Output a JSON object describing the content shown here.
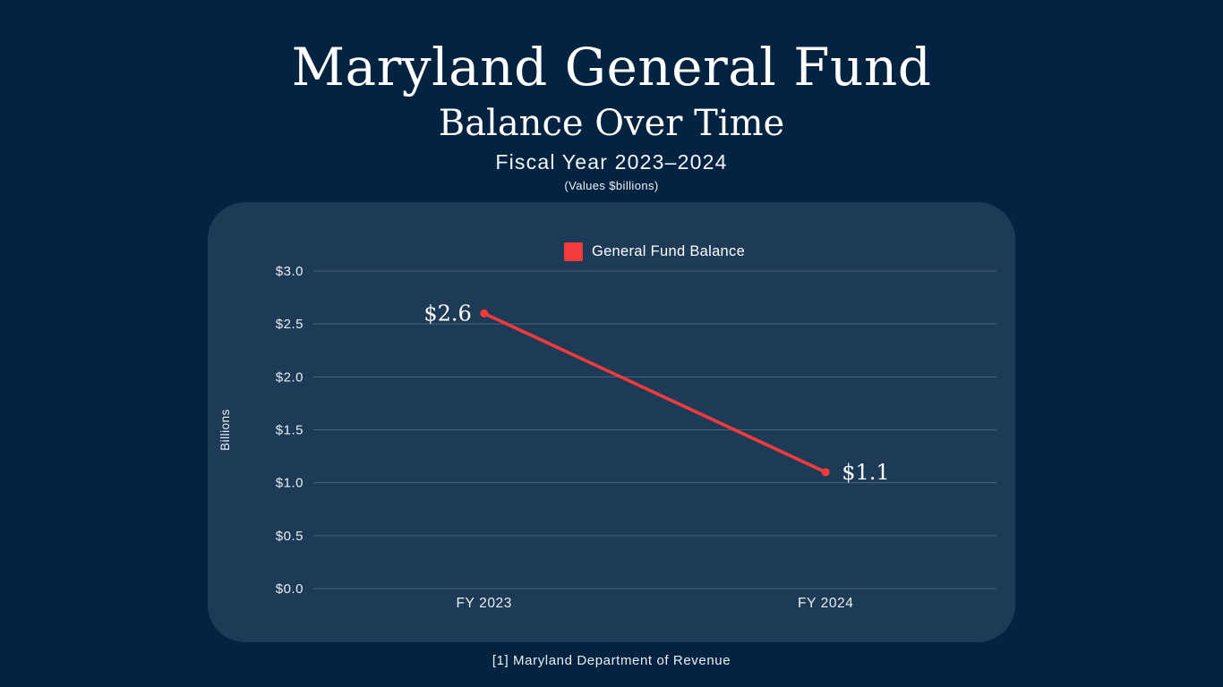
{
  "header": {
    "title": "Maryland General Fund",
    "subtitle": "Balance Over Time",
    "period": "Fiscal Year 2023–2024",
    "units_note": "(Values $billions)"
  },
  "legend": {
    "label": "General Fund Balance",
    "color": "#f53b3c"
  },
  "chart_data": {
    "type": "line",
    "title": "Maryland General Fund Balance Over Time, Fiscal Year 2023–2024",
    "categories": [
      "FY 2023",
      "FY 2024"
    ],
    "series": [
      {
        "name": "General Fund Balance",
        "values": [
          2.6,
          1.1
        ]
      }
    ],
    "point_labels": [
      "$2.6",
      "$1.1"
    ],
    "xlabel": "",
    "ylabel": "Billions",
    "ylim": [
      0,
      3
    ],
    "ytick_step": 0.5,
    "ytick_labels": [
      "$0.0",
      "$0.5",
      "$1.0",
      "$1.5",
      "$2.0",
      "$2.5",
      "$3.0"
    ],
    "grid": true,
    "legend_position": "top-center",
    "line_color": "#f53b3c",
    "grid_color": "#5f7a95",
    "text_color": "#e9eff6",
    "marker": "circle"
  },
  "footer": {
    "source": "[1] Maryland Department of Revenue"
  },
  "colors": {
    "background": "#032340",
    "panel": "#1d3a56",
    "accent_red": "#f53b3c",
    "text": "#ffffff"
  }
}
